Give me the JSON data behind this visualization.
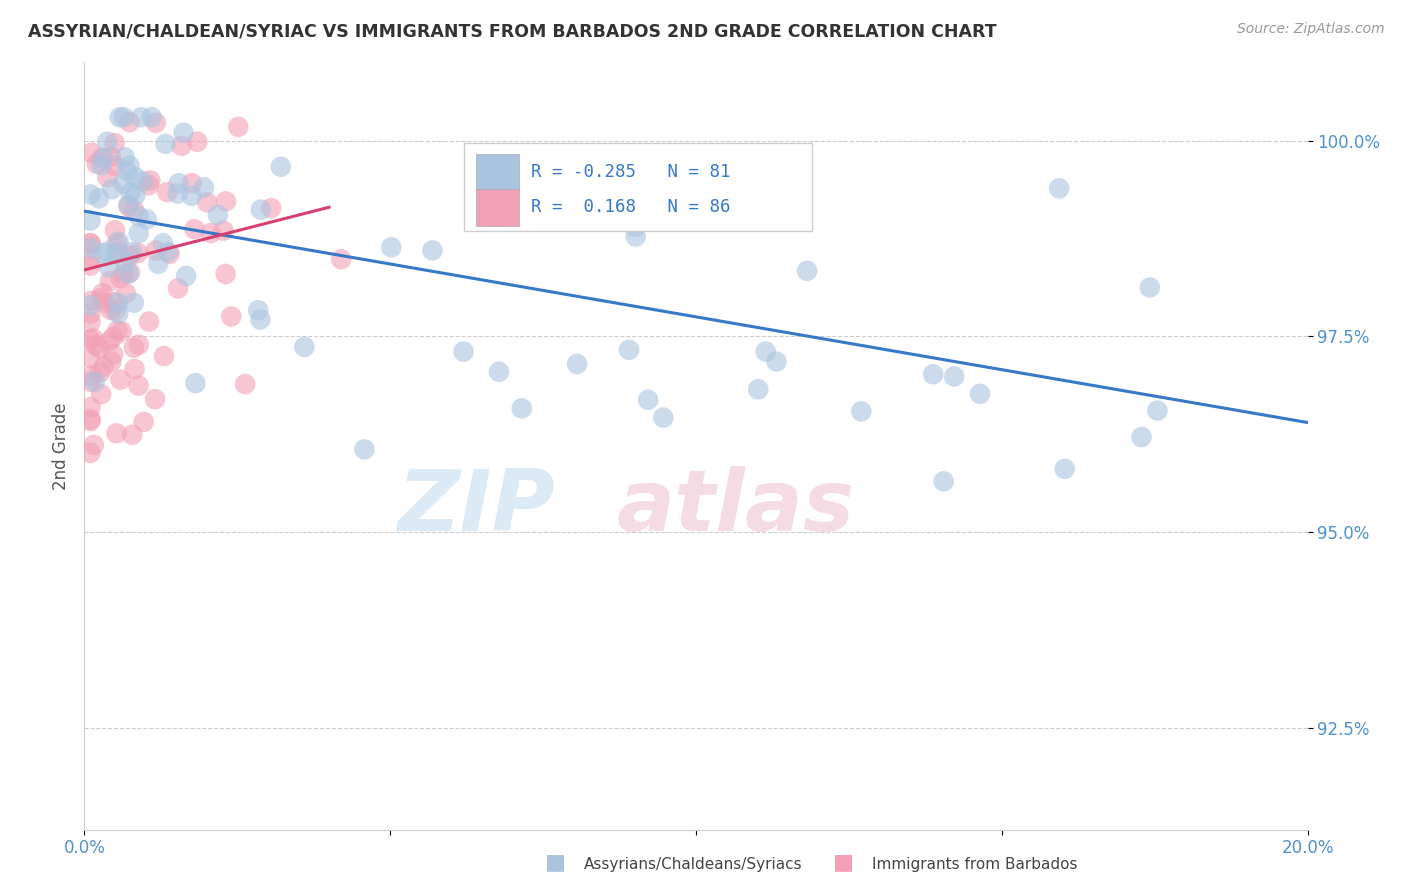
{
  "title": "ASSYRIAN/CHALDEAN/SYRIAC VS IMMIGRANTS FROM BARBADOS 2ND GRADE CORRELATION CHART",
  "source": "Source: ZipAtlas.com",
  "ylabel": "2nd Grade",
  "y_ticks": [
    92.5,
    95.0,
    97.5,
    100.0
  ],
  "y_tick_labels": [
    "92.5%",
    "95.0%",
    "97.5%",
    "100.0%"
  ],
  "x_min": 0.0,
  "x_max": 0.2,
  "y_min": 91.2,
  "y_max": 101.0,
  "R_blue": -0.285,
  "N_blue": 81,
  "R_pink": 0.168,
  "N_pink": 86,
  "legend_label_blue": "Assyrians/Chaldeans/Syriacs",
  "legend_label_pink": "Immigrants from Barbados",
  "blue_color": "#aac4e0",
  "pink_color": "#f2a0b5",
  "blue_line_color": "#3878c8",
  "pink_line_color": "#d84070",
  "blue_line_y0": 99.1,
  "blue_line_y1": 96.4,
  "pink_line_x0": 0.0,
  "pink_line_x1": 0.04,
  "pink_line_y0": 98.35,
  "pink_line_y1": 99.15
}
